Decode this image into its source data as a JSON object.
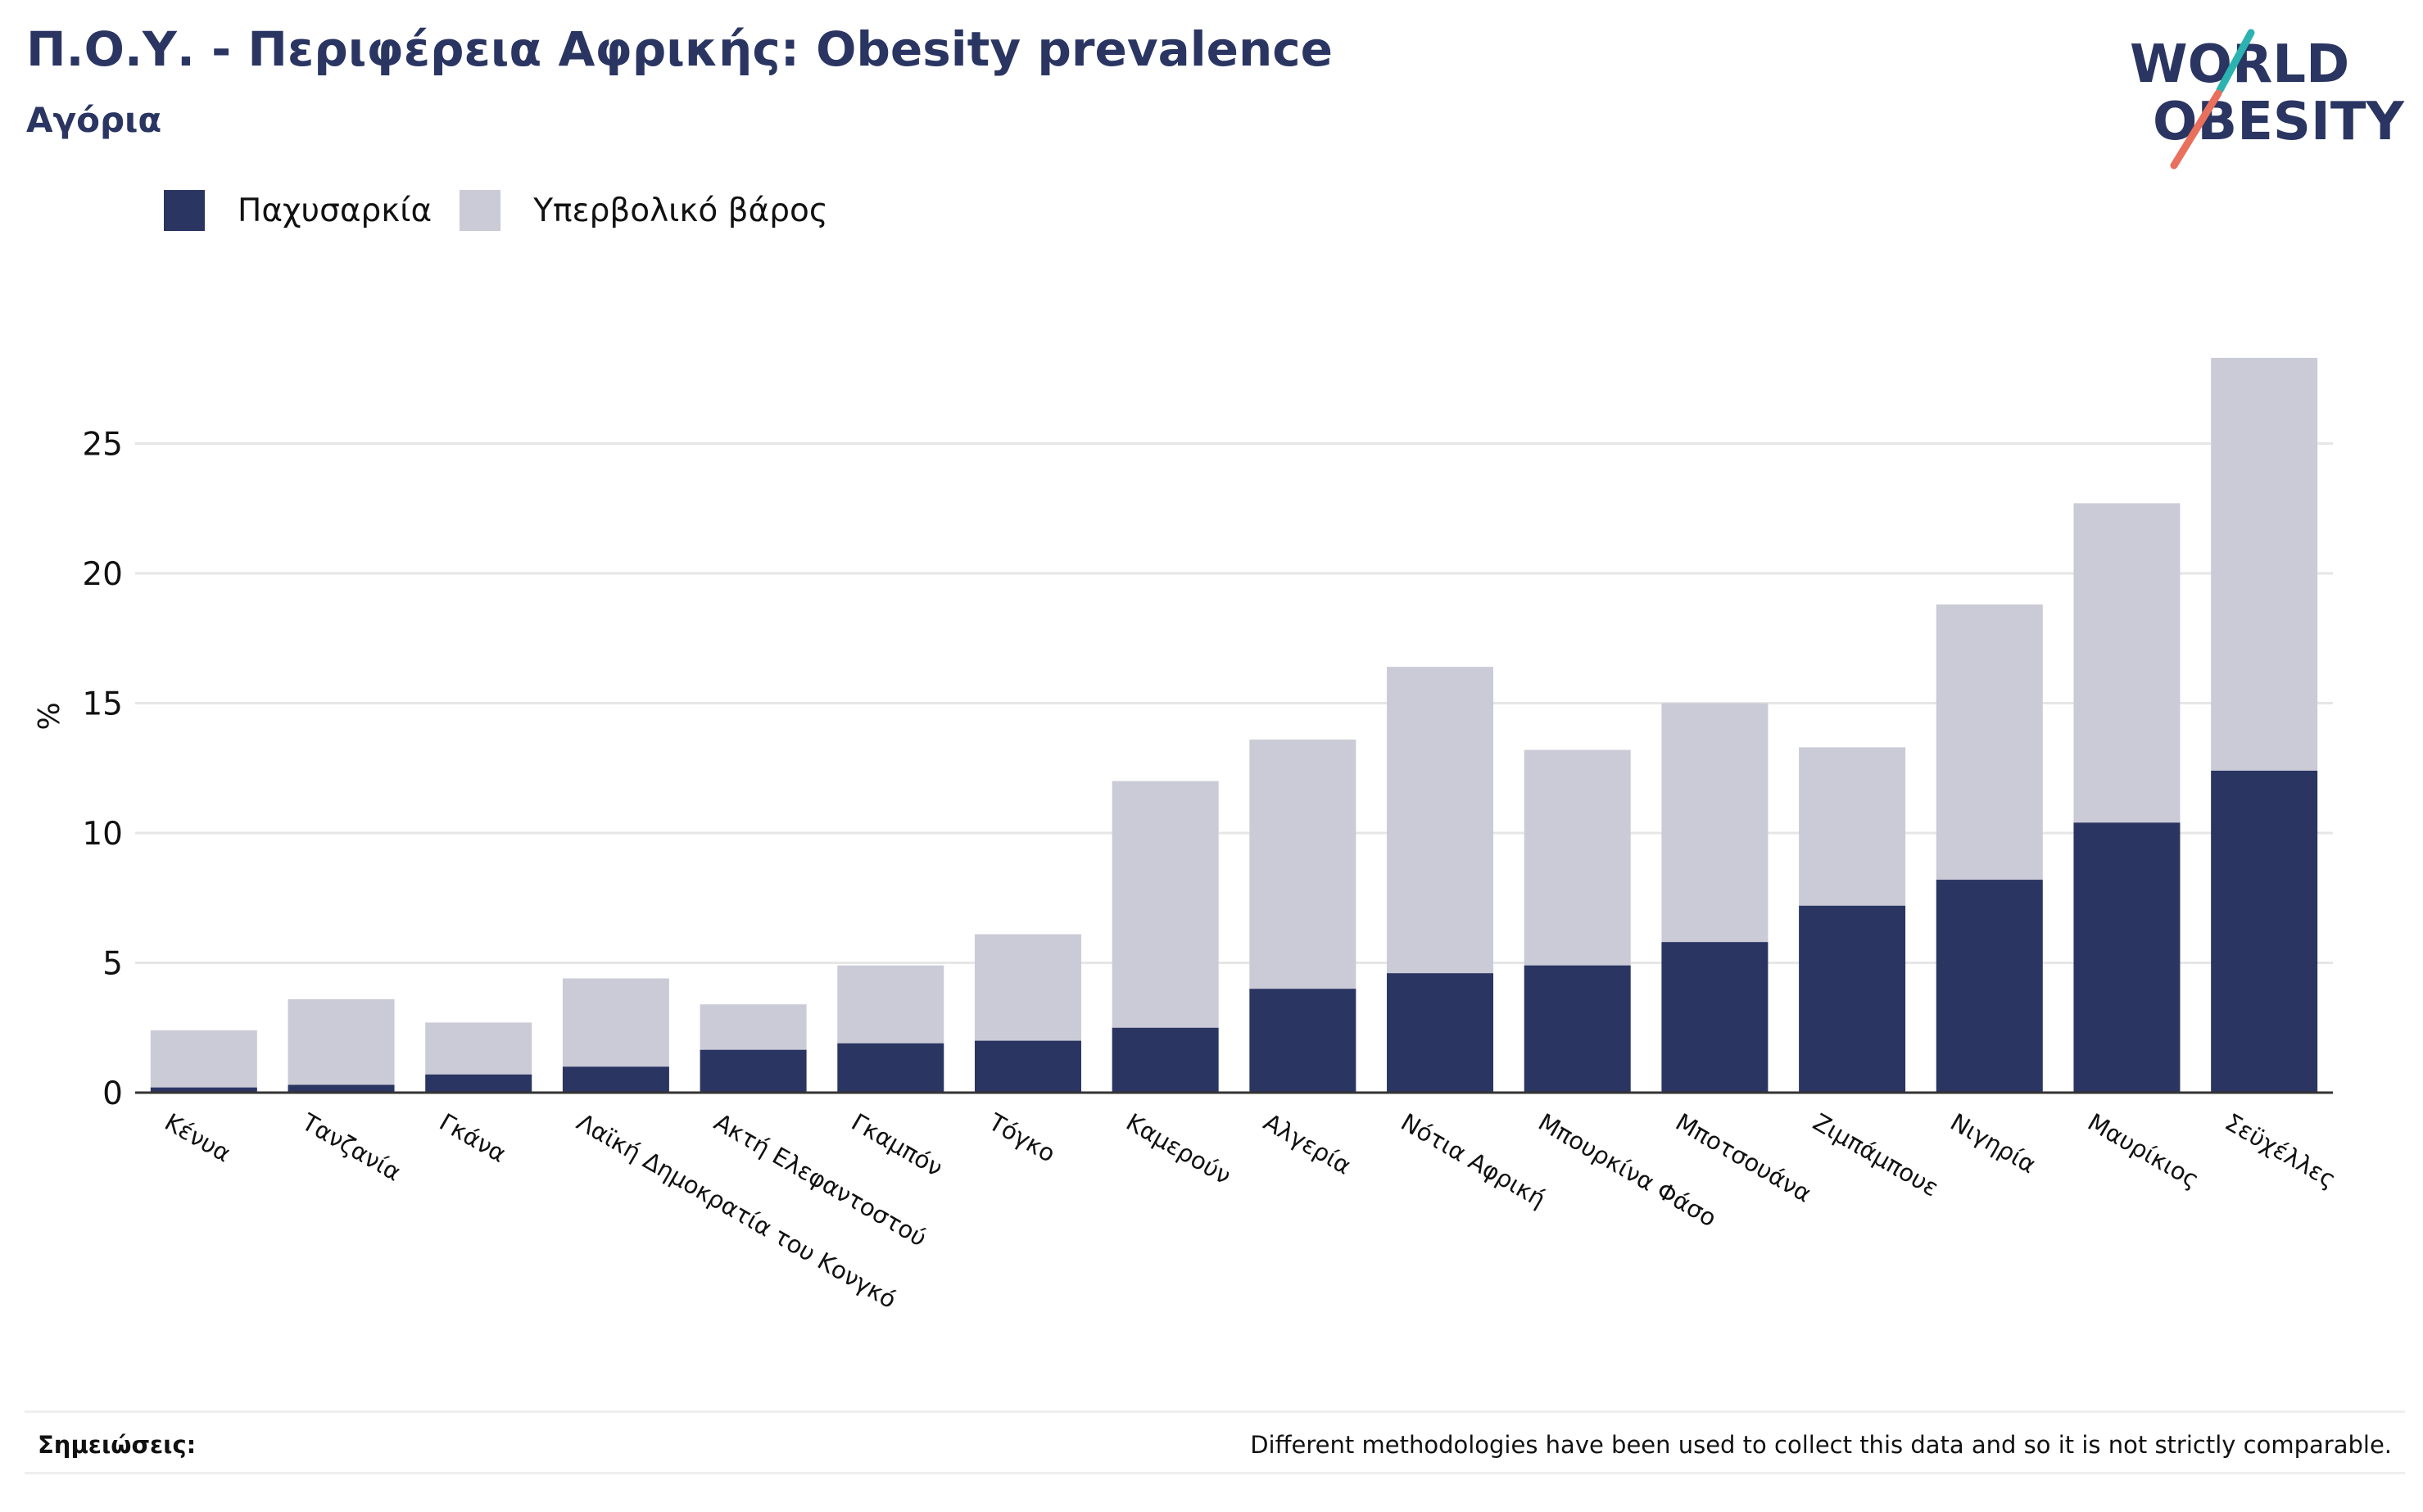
{
  "header": {
    "title": "Π.Ο.Υ. - Περιφέρεια Αφρικής: Obesity prevalence",
    "subtitle": "Αγόρια"
  },
  "logo": {
    "text_line1": "WORLD",
    "text_line2": "OBESITY"
  },
  "colors": {
    "obesity": "#2a3562",
    "overweight": "#cacbd6",
    "grid": "#e6e6e6",
    "text": "#111111",
    "logo_teal": "#2bb3b1",
    "logo_coral": "#e8705c"
  },
  "notes": {
    "label": "Σημειώσεις:",
    "text": "Different methodologies have been used to collect this data and so it is not strictly comparable."
  },
  "chart_data": {
    "type": "bar",
    "stacked": true,
    "title": "Π.Ο.Υ. - Περιφέρεια Αφρικής: Obesity prevalence",
    "subtitle": "Αγόρια",
    "xlabel": "",
    "ylabel": "%",
    "ylim": [
      0,
      29
    ],
    "yticks": [
      0,
      5,
      10,
      15,
      20,
      25
    ],
    "grid": true,
    "legend_position": "top-left",
    "categories": [
      "Κένυα",
      "Τανζανία",
      "Γκάνα",
      "Λαϊκή Δημοκρατία του Κονγκό",
      "Ακτή Ελεφαντοστού",
      "Γκαμπόν",
      "Τόγκο",
      "Καμερούν",
      "Αλγερία",
      "Νότια Αφρική",
      "Μπουρκίνα Φάσο",
      "Μποτσουάνα",
      "Ζιμπάμπουε",
      "Νιγηρία",
      "Μαυρίκιος",
      "Σεϋχέλλες"
    ],
    "series": [
      {
        "name": "Παχυσαρκία",
        "values": [
          0.2,
          0.3,
          0.7,
          1.0,
          1.65,
          1.9,
          2.0,
          2.5,
          4.0,
          4.6,
          4.9,
          5.8,
          7.2,
          8.2,
          10.4,
          12.4
        ]
      },
      {
        "name": "Υπερβολικό βάρος",
        "values": [
          2.2,
          3.3,
          2.0,
          3.4,
          1.75,
          3.0,
          4.1,
          9.5,
          9.6,
          11.8,
          8.3,
          9.2,
          6.1,
          10.6,
          12.3,
          15.9
        ]
      }
    ]
  }
}
